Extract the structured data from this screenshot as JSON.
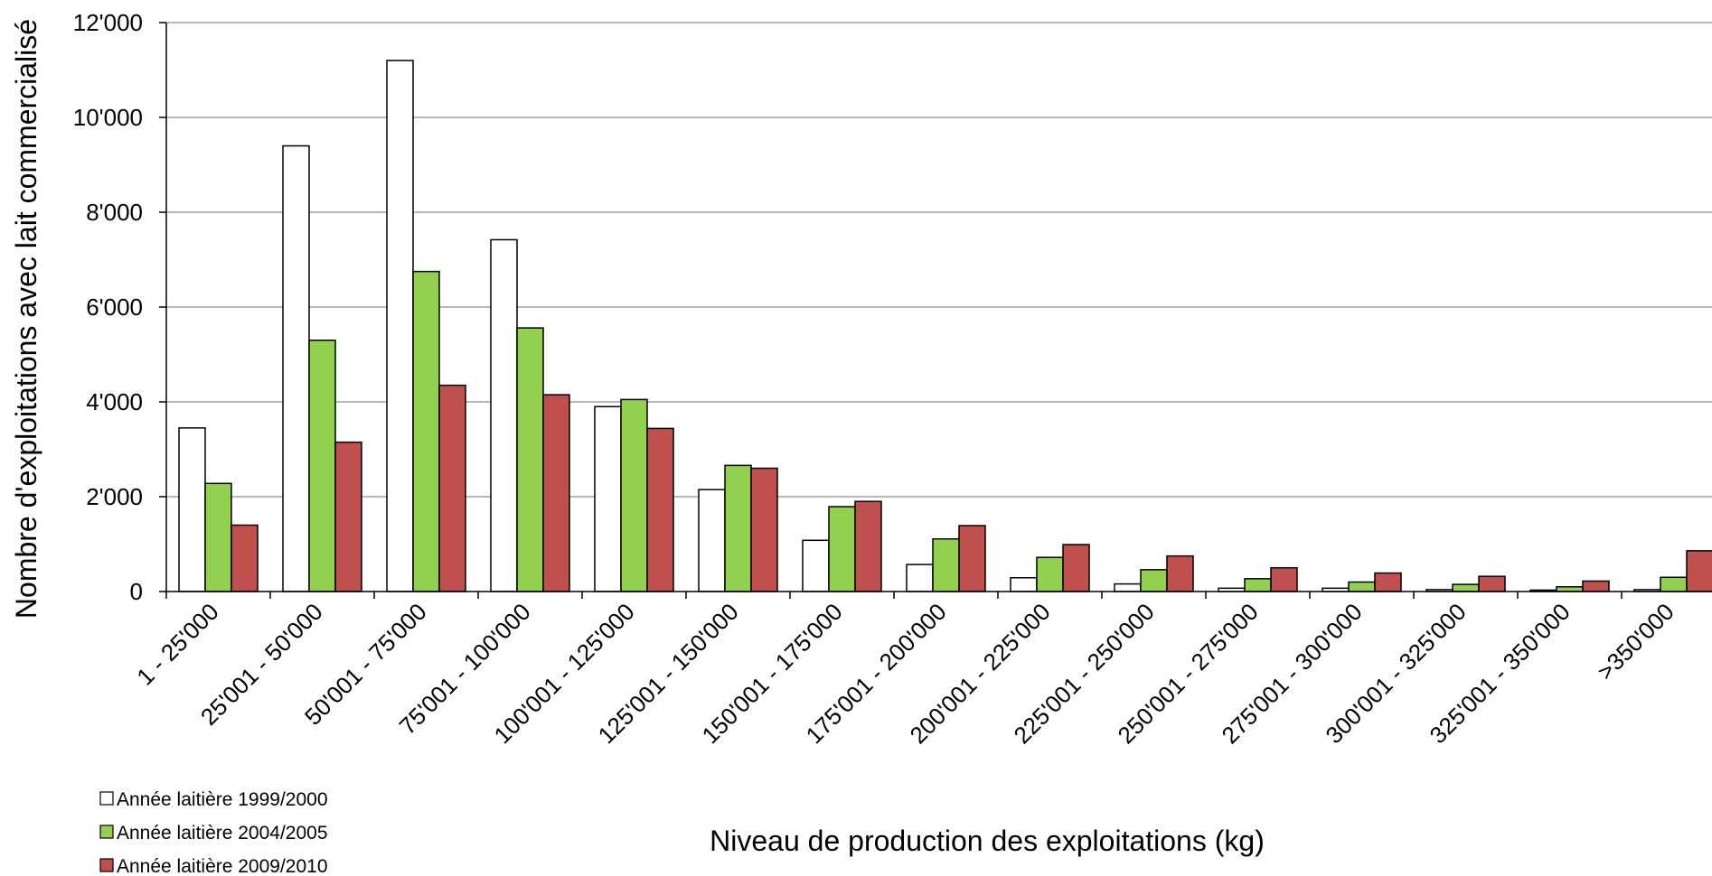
{
  "chart_data": {
    "type": "bar",
    "title": "",
    "xlabel": "Niveau de production des exploitations (kg)",
    "ylabel": "Nombre d'exploitations avec lait commercialisé",
    "ylim": [
      0,
      12000
    ],
    "yticks": [
      {
        "value": 0,
        "label": "0"
      },
      {
        "value": 2000,
        "label": "2'000"
      },
      {
        "value": 4000,
        "label": "4'000"
      },
      {
        "value": 6000,
        "label": "6'000"
      },
      {
        "value": 8000,
        "label": "8'000"
      },
      {
        "value": 10000,
        "label": "10'000"
      },
      {
        "value": 12000,
        "label": "12'000"
      }
    ],
    "grid": true,
    "legend_position": "bottom-left",
    "categories": [
      "1 - 25'000",
      "25'001 - 50'000",
      "50'001 - 75'000",
      "75'001 - 100'000",
      "100'001 - 125'000",
      "125'001 - 150'000",
      "150'001 - 175'000",
      "175'001 - 200'000",
      "200'001 - 225'000",
      "225'001 - 250'000",
      "250'001 - 275'000",
      "275'001 - 300'000",
      "300'001 - 325'000",
      "325'001 - 350'000",
      ">350'000"
    ],
    "series": [
      {
        "name": "Année laitière 1999/2000",
        "color": "#ffffff",
        "values": [
          3450,
          9400,
          11200,
          7420,
          3900,
          2150,
          1080,
          570,
          290,
          160,
          70,
          70,
          40,
          30,
          40
        ]
      },
      {
        "name": "Année laitière 2004/2005",
        "color": "#92d050",
        "values": [
          2280,
          5300,
          6750,
          5560,
          4050,
          2660,
          1790,
          1110,
          720,
          460,
          270,
          200,
          150,
          100,
          300
        ]
      },
      {
        "name": "Année laitière 2009/2010",
        "color": "#c0504d",
        "values": [
          1400,
          3150,
          4350,
          4150,
          3440,
          2600,
          1900,
          1390,
          990,
          750,
          500,
          390,
          320,
          220,
          860
        ]
      }
    ]
  }
}
